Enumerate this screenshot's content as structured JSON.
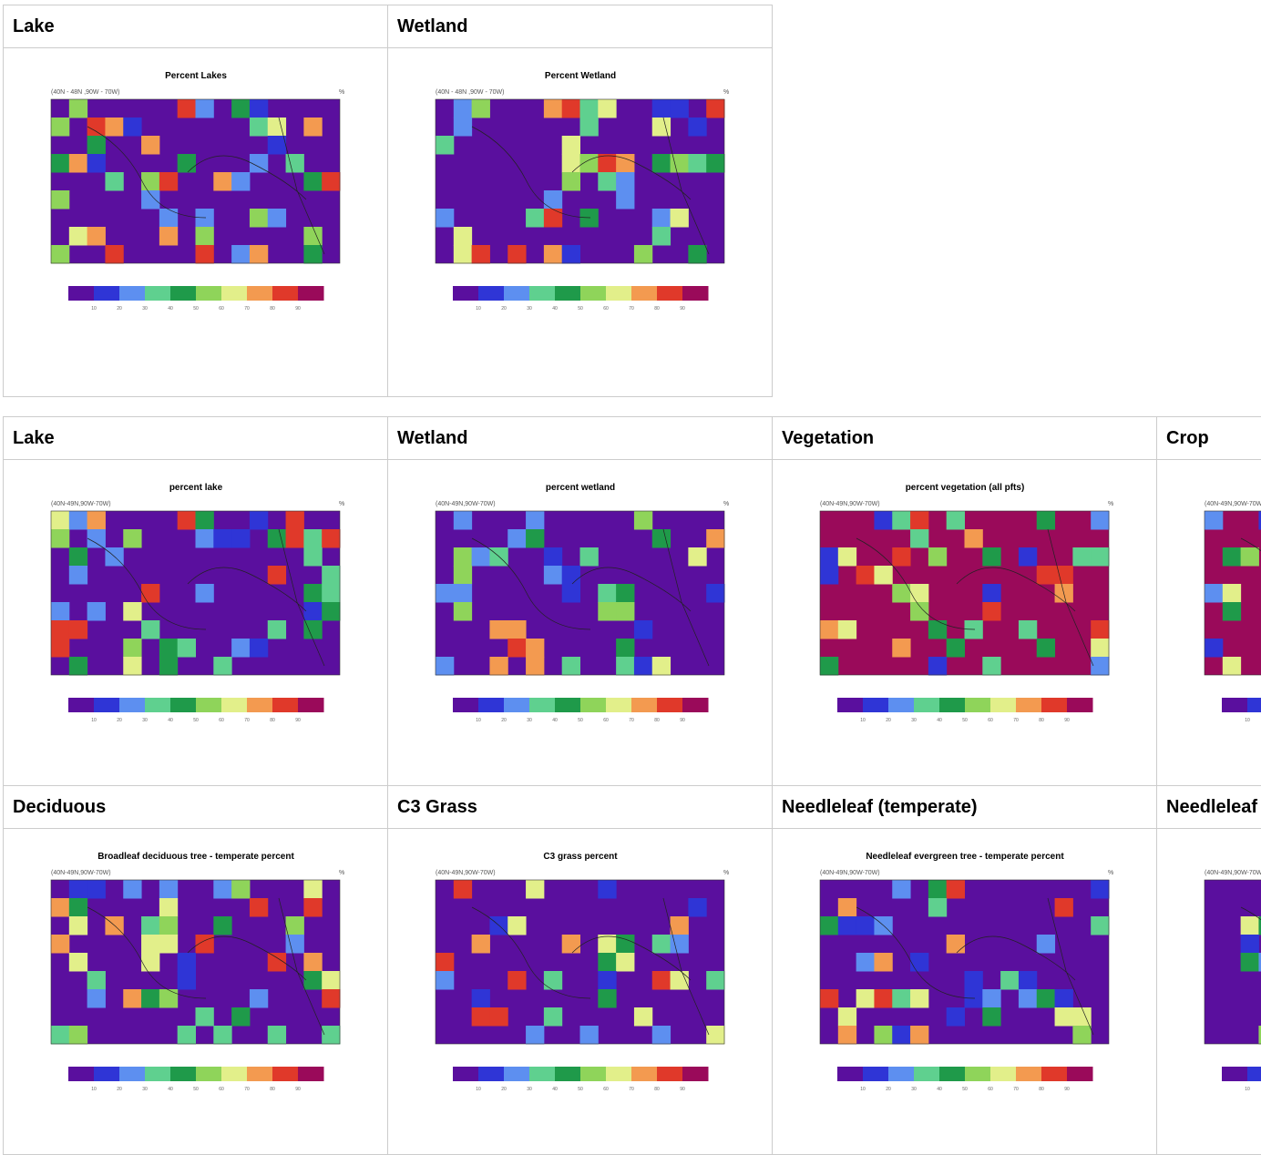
{
  "tables": [
    {
      "headers": [
        "Lake",
        "Wetland"
      ],
      "plots": [
        {
          "title": "Percent Lakes",
          "region": "(40N - 48N ,90W - 70W)",
          "unit": "%"
        },
        {
          "title": "Percent Wetland",
          "region": "(40N - 48N ,90W - 70W)",
          "unit": "%"
        }
      ]
    },
    {
      "rows": [
        {
          "headers": [
            "Lake",
            "Wetland",
            "Vegetation",
            "Crop"
          ],
          "plots": [
            {
              "title": "percent lake",
              "region": "(40N-49N,90W-70W)",
              "unit": "%"
            },
            {
              "title": "percent wetland",
              "region": "(40N-49N,90W-70W)",
              "unit": "%"
            },
            {
              "title": "percent vegetation (all pfts)",
              "region": "(40N-49N,90W-70W)",
              "unit": "%"
            },
            {
              "region": "(40N-49N,90W-70W)"
            }
          ]
        },
        {
          "headers": [
            "Deciduous",
            "C3 Grass",
            "Needleleaf (temperate)",
            "Needleleaf"
          ],
          "plots": [
            {
              "title": "Broadleaf deciduous tree - temperate percent",
              "region": "(40N-49N,90W-70W)",
              "unit": "%"
            },
            {
              "title": "C3 grass percent",
              "region": "(40N-49N,90W-70W)",
              "unit": "%"
            },
            {
              "title": "Needleleaf evergreen tree - temperate percent",
              "region": "(40N-49N,90W-70W)",
              "unit": "%"
            },
            {
              "region": "(40N-49N,90W-70W)"
            }
          ]
        }
      ]
    }
  ],
  "colorbar_ticks": [
    10,
    20,
    30,
    40,
    50,
    60,
    70,
    80,
    90
  ]
}
